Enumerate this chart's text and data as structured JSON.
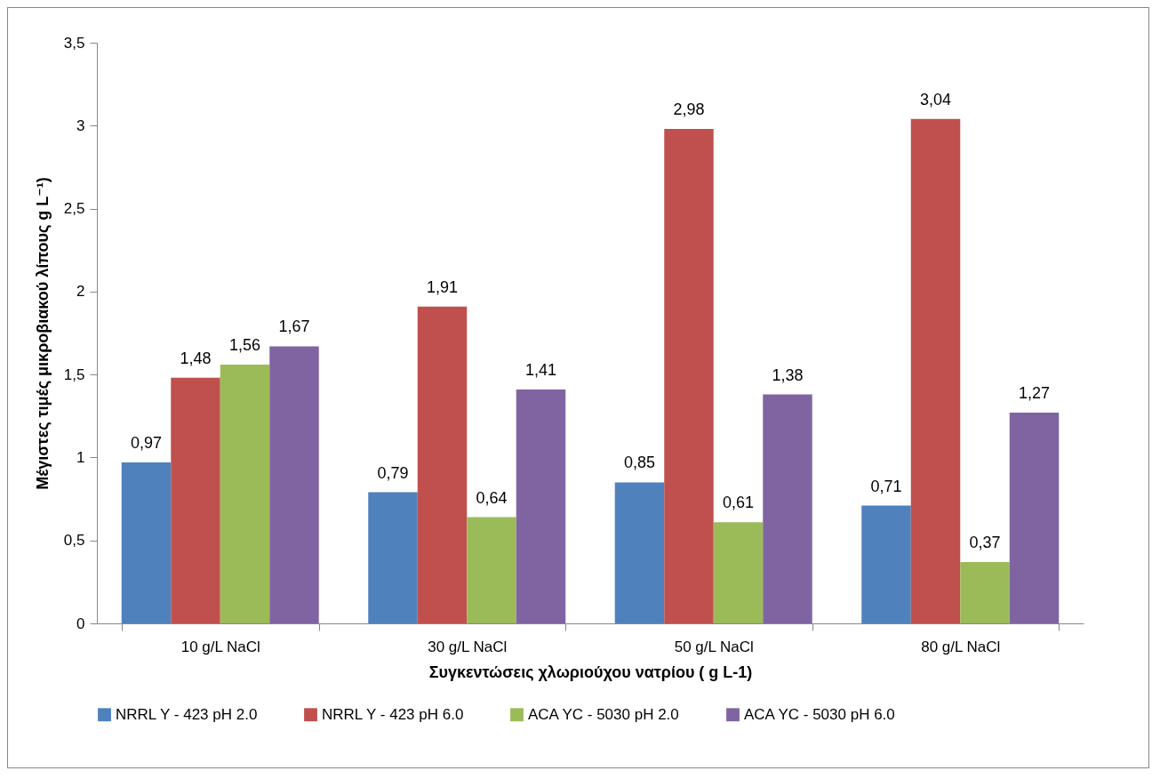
{
  "chart_data": {
    "type": "bar",
    "xlabel": "Συγκεντώσεις χλωριούχου νατρίου ( g L-1)",
    "ylabel": "Μέγιστες τιμές μικροβιακού λίπους g L⁻¹)",
    "categories": [
      "10 g/L NaCl",
      "30 g/L NaCl",
      "50 g/L NaCl",
      "80 g/L NaCl"
    ],
    "series": [
      {
        "name": "NRRL Y - 423 pH 2.0",
        "color": "#4f81bd",
        "values": [
          0.97,
          0.79,
          0.85,
          0.71
        ],
        "value_labels": [
          "0,97",
          "0,79",
          "0,85",
          "0,71"
        ]
      },
      {
        "name": "NRRL Y - 423 pH 6.0",
        "color": "#c0504d",
        "values": [
          1.48,
          1.91,
          2.98,
          3.04
        ],
        "value_labels": [
          "1,48",
          "1,91",
          "2,98",
          "3,04"
        ]
      },
      {
        "name": "ACA YC - 5030 pH 2.0",
        "color": "#9bbb59",
        "values": [
          1.56,
          0.64,
          0.61,
          0.37
        ],
        "value_labels": [
          "1,56",
          "0,64",
          "0,61",
          "0,37"
        ]
      },
      {
        "name": "ACA YC - 5030 pH 6.0",
        "color": "#8064a2",
        "values": [
          1.67,
          1.41,
          1.38,
          1.27
        ],
        "value_labels": [
          "1,67",
          "1,41",
          "1,38",
          "1,27"
        ]
      }
    ],
    "ylim": [
      0,
      3.5
    ],
    "yticks": [
      0,
      {
        "value": 0.5,
        "label": "0,5"
      },
      1,
      {
        "value": 1.5,
        "label": "1,5"
      },
      2,
      {
        "value": 2.5,
        "label": "2,5"
      },
      3,
      {
        "value": 3.5,
        "label": "3,5"
      }
    ],
    "grid": false,
    "legend": "bottom"
  }
}
